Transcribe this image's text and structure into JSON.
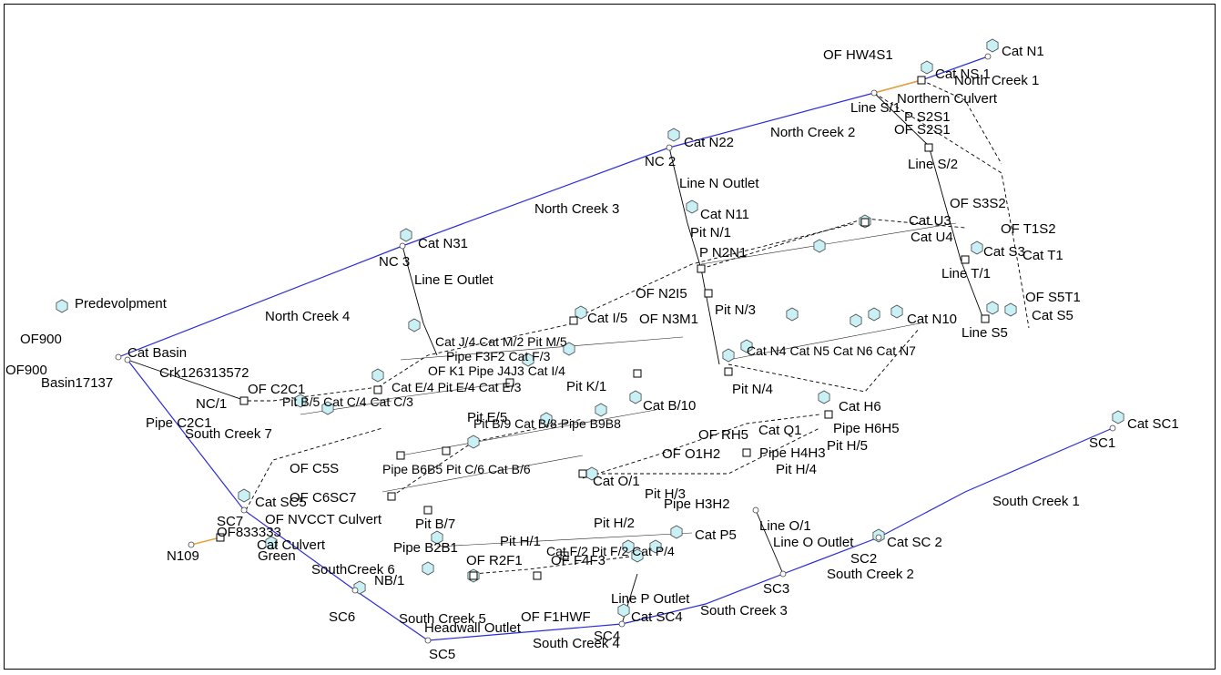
{
  "colors": {
    "creek": "#2b2bd9",
    "catchment": "#c9f1f5",
    "culvert": "#e8a23c"
  },
  "icons": {
    "catchment": "hexagon-catchment-icon",
    "pit": "pit-square-icon",
    "node": "node-circle-icon"
  },
  "labels": {
    "cat_n1": "Cat N1",
    "cat_ns1": "Cat NS 1",
    "of_hw4s1": "OF HW4S1",
    "north_creek_1": "North Creek 1",
    "northern_culvert": "Northern Culvert",
    "line_s1": "Line S/1",
    "p_s2s1": "P S2S1",
    "of_s2s1": "OF S2S1",
    "north_creek_2": "North Creek 2",
    "cat_n22": "Cat N22",
    "nc2": "NC 2",
    "line_s2": "Line S/2",
    "line_n_outlet": "Line N Outlet",
    "north_creek_3": "North Creek 3",
    "cat_n11": "Cat N11",
    "pit_n1": "Pit N/1",
    "p_n2n1": "P N2N1",
    "of_s3s2": "OF S3S2",
    "of_t1s2": "OF T1S2",
    "cat_u3": "Cat U3",
    "cat_u4": "Cat U4",
    "cat_s3": "Cat S3",
    "cat_t1": "Cat T1",
    "cat_n31": "Cat N31",
    "nc3": "NC 3",
    "line_e_outlet": "Line E Outlet",
    "of_n2i5": "OF N2I5",
    "cat_i5": "Cat I/5",
    "of_n3m1": "OF N3M1",
    "pit_n3": "Pit N/3",
    "cat_n10": "Cat N10",
    "of_s5t1": "OF S5T1",
    "cat_s5": "Cat S5",
    "predevolpment": "Predevolpment",
    "north_creek_4": "North Creek 4",
    "cat_basin": "Cat Basin",
    "crk126313572": "Crk126313572",
    "basin17137": "Basin17137",
    "nc1": "NC/1",
    "of_c2c1": "OF C2C1",
    "pit_e5": "Pit E/5",
    "pit_k1": "Pit K/1",
    "pit_n4": "Pit N/4",
    "cat_h6": "Cat H6",
    "pipe_h6h5": "Pipe H6H5",
    "pit_h5": "Pit H/5",
    "cat_b10": "Cat B/10",
    "pipe_c2c1": "Pipe C2C1",
    "south_creek_7": "South Creek 7",
    "of_rh5": "OF RH5",
    "cat_q1": "Cat Q1",
    "pipe_h4h3": "Pipe H4H3",
    "of_c5": "OF C5S",
    "of_o1h2": "OF O1H2",
    "pit_h4": "Pit H/4",
    "cat_sc1": "Cat SC1",
    "sc1": "SC1",
    "cat_o1": "Cat O/1",
    "pit_h3": "Pit H/3",
    "pipe_h3h2": "Pipe H3H2",
    "south_creek_1": "South Creek 1",
    "cat_sc5": "Cat SC5",
    "of_c6sc7": "OF C6SC7",
    "sc7": "SC7",
    "of_nvcct": "OF NVCCT Culvert",
    "pit_b7": "Pit B/7",
    "pit_h2": "Pit H/2",
    "of_833": "OF833333",
    "cat_culvert": "Cat Culvert",
    "n109": "N109",
    "green": "Green",
    "pipe_b2b1": "Pipe B2B1",
    "pit_h1": "Pit H/1",
    "line_o1": "Line O/1",
    "line_o_outlet": "Line O Outlet",
    "cat_sc2": "Cat SC 2",
    "sc2": "SC2",
    "south_creek_2": "South Creek 2",
    "cat_p5": "Cat P5",
    "south_creek_6": "SouthCreek 6",
    "of_r2f1": "OF R2F1",
    "of_f4f3": "OF F4F3",
    "nb1": "NB/1",
    "sc3": "SC3",
    "line_p_outlet": "Line P Outlet",
    "south_creek_3": "South Creek 3",
    "sc6": "SC6",
    "south_creek_5": "South Creek 5",
    "of_f1hwf": "OF F1HWF",
    "cat_sc4": "Cat SC4",
    "headwall": "Headwall Outlet",
    "sc4": "SC4",
    "south_creek_4": "South Creek 4",
    "sc5": "SC5",
    "of900_a": "OF900",
    "of900_b": "OF900",
    "line_t": "Line T/1",
    "line_s5": "Line S5"
  },
  "clutter": [
    "Cat J/4  Cat M/2  Pit M/5",
    "Pipe F3F2  Cat F/3",
    "OF K1  Pipe J4J3  Cat I/4",
    "Cat E/4  Pit E/4  Cat E/3",
    "Pit B/5  Cat C/4  Cat C/3",
    "Pipe B6B5  Pit C/6  Cat B/6",
    "Cat N4  Cat N5  Cat N6  Cat N7",
    "Pit B/9  Cat B/8  Pipe B9B8",
    "Cat F/2  Pit F/2  Cat P/4"
  ]
}
